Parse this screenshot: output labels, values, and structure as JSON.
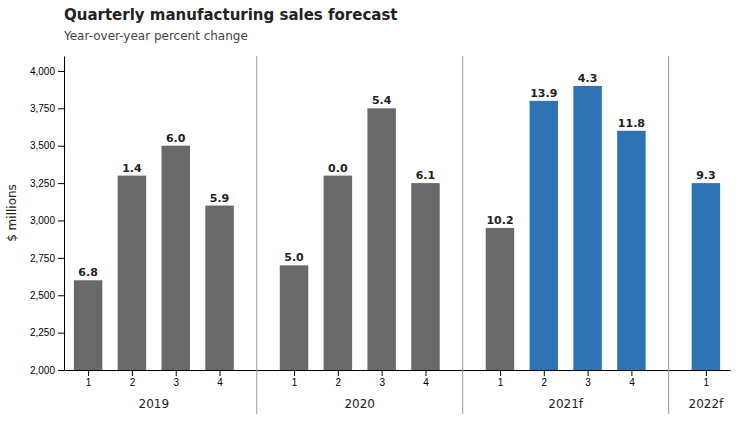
{
  "chart_data": {
    "type": "bar",
    "title": "Quarterly manufacturing sales forecast",
    "subtitle": "Year-over-year percent change",
    "y_label": "$ millions",
    "categories": [
      "1",
      "2",
      "3",
      "4",
      "1",
      "2",
      "3",
      "4",
      "1",
      "2",
      "3",
      "4",
      "1"
    ],
    "groups": [
      "2019",
      "2019",
      "2019",
      "2019",
      "2020",
      "2020",
      "2020",
      "2020",
      "2021f",
      "2021f",
      "2021f",
      "2021f",
      "2022f"
    ],
    "values": [
      2600,
      3300,
      3500,
      3100,
      2700,
      3300,
      3750,
      3250,
      2950,
      3800,
      3900,
      3600,
      3250
    ],
    "pct_change": [
      6.8,
      1.4,
      6.0,
      5.9,
      5.0,
      0.0,
      5.4,
      6.1,
      10.2,
      13.9,
      4.3,
      11.8,
      9.3
    ],
    "pct_change_labels": [
      "6.8",
      "1.4",
      "6.0",
      "5.9",
      "5.0",
      "0.0",
      "5.4",
      "6.1",
      "10.2",
      "13.9",
      "4.3",
      "11.8",
      "9.3"
    ],
    "colors": [
      "#696969",
      "#696969",
      "#696969",
      "#696969",
      "#696969",
      "#696969",
      "#696969",
      "#696969",
      "#696969",
      "#2e74b5",
      "#2e74b5",
      "#2e74b5",
      "#2e74b5"
    ],
    "ylim": [
      2000,
      4100
    ],
    "yticks": [
      {
        "value": 2000,
        "label": "2,000"
      },
      {
        "value": 2250,
        "label": "2,250"
      },
      {
        "value": 2500,
        "label": "2,500"
      },
      {
        "value": 2750,
        "label": "2,750"
      },
      {
        "value": 3000,
        "label": "3,000"
      },
      {
        "value": 3250,
        "label": "3,250"
      },
      {
        "value": 3500,
        "label": "3,500"
      },
      {
        "value": 3750,
        "label": "3,750"
      },
      {
        "value": 4000,
        "label": "4,000"
      }
    ],
    "grid": false
  }
}
